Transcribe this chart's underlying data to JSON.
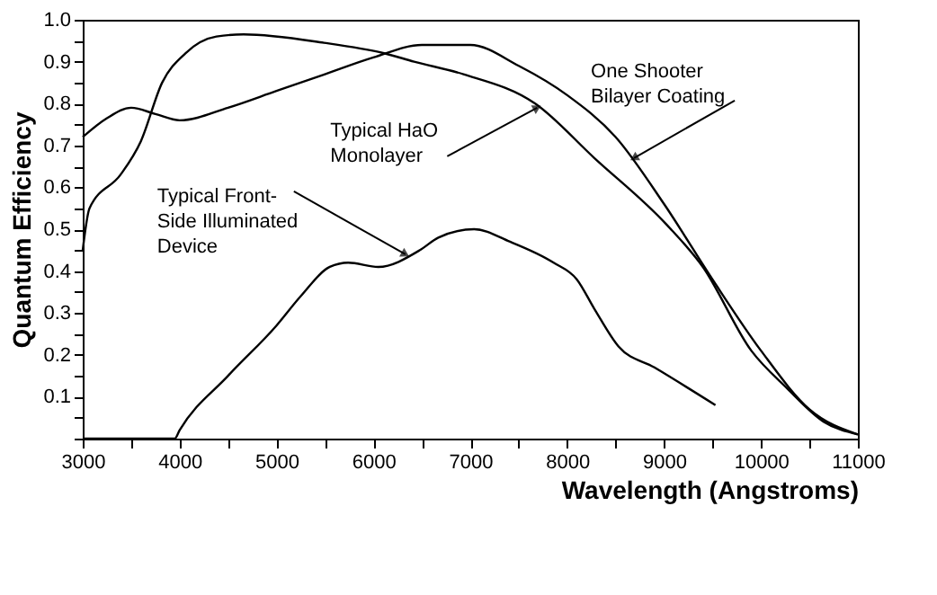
{
  "chart_data": {
    "type": "line",
    "xlabel": "Wavelength (Angstroms)",
    "ylabel": "Quantum Efficiency",
    "xlim": [
      3000,
      11000
    ],
    "ylim": [
      0,
      1
    ],
    "xticks": [
      3000,
      {
        "value": 3500,
        "label": null
      },
      4000,
      {
        "value": 4500,
        "label": null
      },
      5000,
      {
        "value": 5500,
        "label": null
      },
      6000,
      {
        "value": 6500,
        "label": null
      },
      7000,
      {
        "value": 7500,
        "label": null
      },
      8000,
      {
        "value": 8500,
        "label": null
      },
      9000,
      {
        "value": 9500,
        "label": null
      },
      10000,
      {
        "value": 10500,
        "label": null
      },
      11000
    ],
    "yticks": [
      {
        "value": 0,
        "label": null
      },
      {
        "value": 0.05,
        "label": null
      },
      0.1,
      {
        "value": 0.15,
        "label": null
      },
      0.2,
      {
        "value": 0.25,
        "label": null
      },
      0.3,
      {
        "value": 0.35,
        "label": null
      },
      0.4,
      {
        "value": 0.45,
        "label": null
      },
      0.5,
      {
        "value": 0.55,
        "label": null
      },
      0.6,
      {
        "value": 0.65,
        "label": null
      },
      0.7,
      {
        "value": 0.75,
        "label": null
      },
      0.8,
      {
        "value": 0.85,
        "label": null
      },
      0.9,
      {
        "value": 0.95,
        "label": null
      },
      {
        "value": 1,
        "label": "1.0"
      }
    ],
    "grid": false,
    "marker": "none",
    "line_style": "solid",
    "series": [
      {
        "color": "#000000",
        "x": [
          3000,
          3250,
          3500,
          3750,
          4000,
          4500,
          5000,
          5500,
          6000,
          6500,
          7000,
          7500,
          8000,
          8500,
          9000,
          9500,
          10000,
          10500,
          11000
        ],
        "values": [
          0.72,
          0.765,
          0.79,
          0.775,
          0.76,
          0.79,
          0.83,
          0.87,
          0.91,
          0.94,
          0.94,
          0.89,
          0.82,
          0.72,
          0.56,
          0.38,
          0.21,
          0.07,
          0.01
        ]
      },
      {
        "color": "#000000",
        "x": [
          3000,
          3070,
          3390,
          3600,
          3820,
          4060,
          4380,
          4660,
          5490,
          6110,
          6420,
          6930,
          7670,
          8280,
          9030,
          9400,
          9900,
          10270,
          10650,
          11000
        ],
        "values": [
          0.45,
          0.55,
          0.63,
          0.71,
          0.85,
          0.92,
          0.96,
          0.965,
          0.945,
          0.92,
          0.9,
          0.87,
          0.8,
          0.67,
          0.51,
          0.41,
          0.21,
          0.12,
          0.04,
          0.01
        ]
      },
      {
        "color": "#000000",
        "x": [
          3000,
          3950,
          4000,
          4500,
          5000,
          5250,
          5550,
          5740,
          6050,
          6480,
          6670,
          7040,
          7410,
          7860,
          8100,
          8280,
          8530,
          8900,
          9530
        ],
        "values": [
          0,
          0,
          0.02,
          0.15,
          0.27,
          0.34,
          0.41,
          0.42,
          0.41,
          0.45,
          0.48,
          0.5,
          0.47,
          0.42,
          0.38,
          0.31,
          0.22,
          0.17,
          0.08
        ]
      }
    ],
    "annotations": [
      {
        "text": "One Shooter\nBilayer Coating",
        "x": 8690,
        "y": 0.67
      },
      {
        "text": "Typical HaO\nMonolayer",
        "x": 7690,
        "y": 0.79
      },
      {
        "text": "Typical Front-\nSide Illuminated\nDevice",
        "x": 6330,
        "y": 0.44
      }
    ]
  }
}
